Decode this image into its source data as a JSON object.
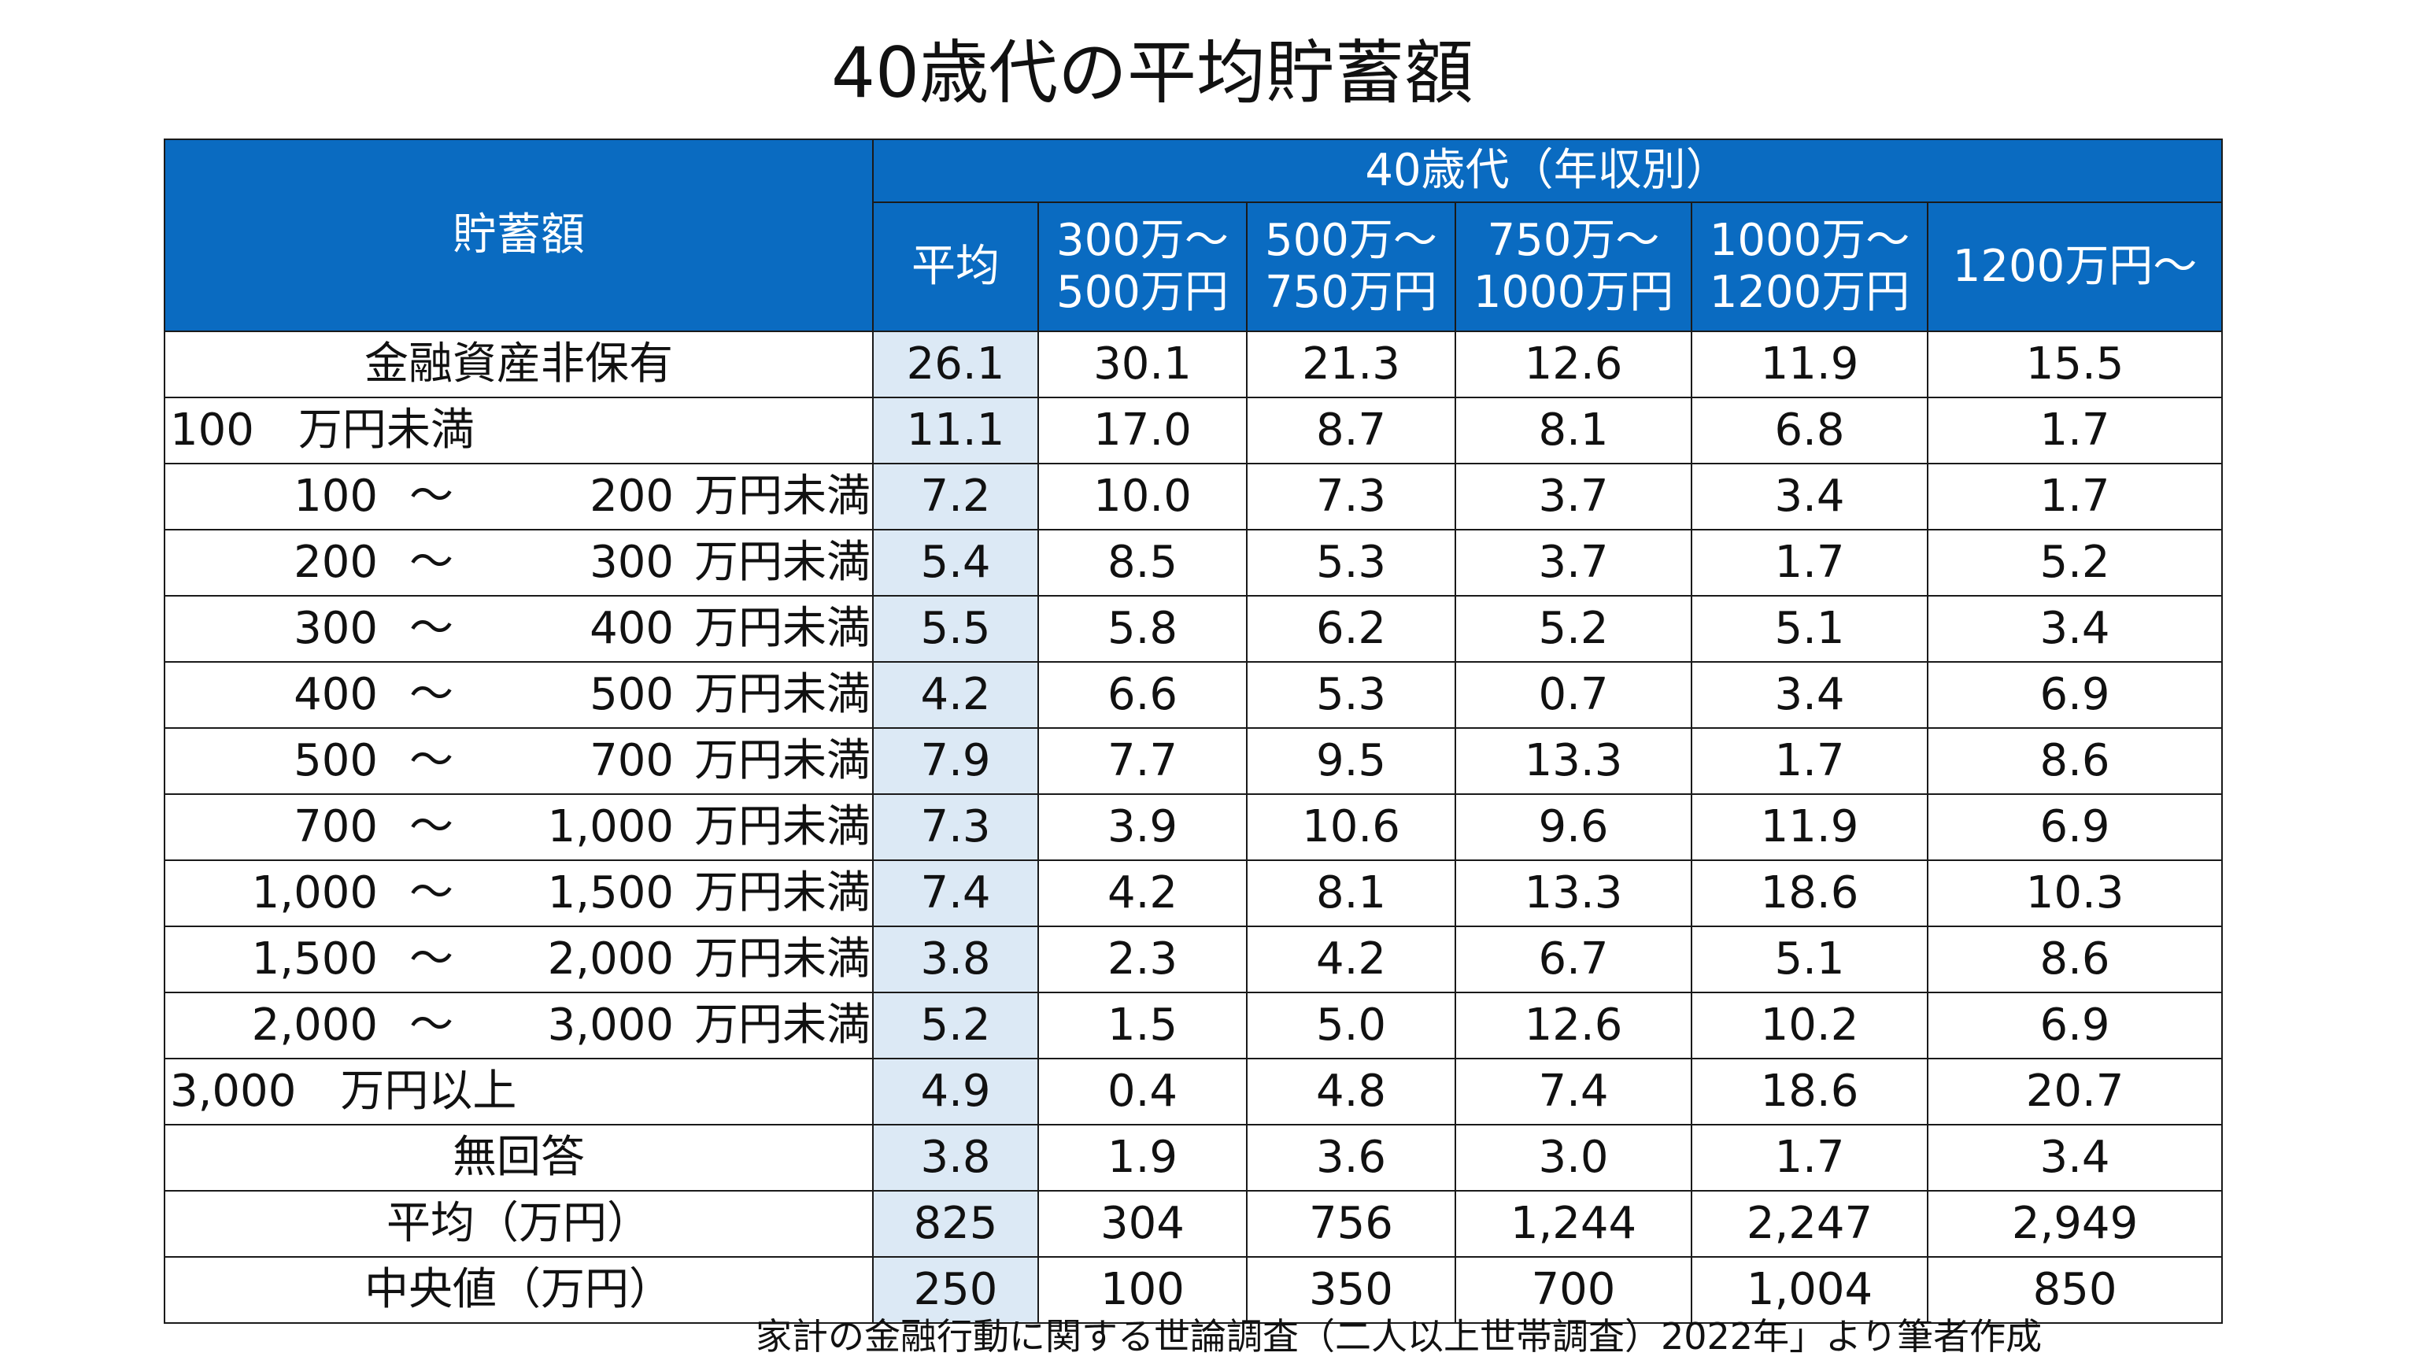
{
  "title": "40歳代の平均貯蓄額",
  "header": {
    "row_label": "貯蓄額",
    "group_label": "40歳代（年収別）",
    "columns": [
      {
        "line1": "平均",
        "line2": ""
      },
      {
        "line1": "300万～",
        "line2": "500万円"
      },
      {
        "line1": "500万～",
        "line2": "750万円"
      },
      {
        "line1": "750万～",
        "line2": "1000万円"
      },
      {
        "line1": "1000万～",
        "line2": "1200万円"
      },
      {
        "line1": "1200万円～",
        "line2": ""
      }
    ]
  },
  "rows": [
    {
      "kind": "center",
      "label": "金融資産非保有",
      "values": [
        "26.1",
        "30.1",
        "21.3",
        "12.6",
        "11.9",
        "15.5"
      ]
    },
    {
      "kind": "left",
      "label": "100　万円未満",
      "values": [
        "11.1",
        "17.0",
        "8.7",
        "8.1",
        "6.8",
        "1.7"
      ]
    },
    {
      "kind": "range",
      "lo": "100",
      "tilde": "～",
      "hi": "200",
      "unit": "万円未満",
      "values": [
        "7.2",
        "10.0",
        "7.3",
        "3.7",
        "3.4",
        "1.7"
      ]
    },
    {
      "kind": "range",
      "lo": "200",
      "tilde": "～",
      "hi": "300",
      "unit": "万円未満",
      "values": [
        "5.4",
        "8.5",
        "5.3",
        "3.7",
        "1.7",
        "5.2"
      ]
    },
    {
      "kind": "range",
      "lo": "300",
      "tilde": "～",
      "hi": "400",
      "unit": "万円未満",
      "values": [
        "5.5",
        "5.8",
        "6.2",
        "5.2",
        "5.1",
        "3.4"
      ]
    },
    {
      "kind": "range",
      "lo": "400",
      "tilde": "～",
      "hi": "500",
      "unit": "万円未満",
      "values": [
        "4.2",
        "6.6",
        "5.3",
        "0.7",
        "3.4",
        "6.9"
      ]
    },
    {
      "kind": "range",
      "lo": "500",
      "tilde": "～",
      "hi": "700",
      "unit": "万円未満",
      "values": [
        "7.9",
        "7.7",
        "9.5",
        "13.3",
        "1.7",
        "8.6"
      ]
    },
    {
      "kind": "range",
      "lo": "700",
      "tilde": "～",
      "hi": "1,000",
      "unit": "万円未満",
      "values": [
        "7.3",
        "3.9",
        "10.6",
        "9.6",
        "11.9",
        "6.9"
      ]
    },
    {
      "kind": "range",
      "lo": "1,000",
      "tilde": "～",
      "hi": "1,500",
      "unit": "万円未満",
      "values": [
        "7.4",
        "4.2",
        "8.1",
        "13.3",
        "18.6",
        "10.3"
      ]
    },
    {
      "kind": "range",
      "lo": "1,500",
      "tilde": "～",
      "hi": "2,000",
      "unit": "万円未満",
      "values": [
        "3.8",
        "2.3",
        "4.2",
        "6.7",
        "5.1",
        "8.6"
      ]
    },
    {
      "kind": "range",
      "lo": "2,000",
      "tilde": "～",
      "hi": "3,000",
      "unit": "万円未満",
      "values": [
        "5.2",
        "1.5",
        "5.0",
        "12.6",
        "10.2",
        "6.9"
      ]
    },
    {
      "kind": "left",
      "label": "3,000　万円以上",
      "values": [
        "4.9",
        "0.4",
        "4.8",
        "7.4",
        "18.6",
        "20.7"
      ]
    },
    {
      "kind": "center",
      "label": "無回答",
      "values": [
        "3.8",
        "1.9",
        "3.6",
        "3.0",
        "1.7",
        "3.4"
      ]
    },
    {
      "kind": "center",
      "label": "平均（万円）",
      "values": [
        "825",
        "304",
        "756",
        "1,244",
        "2,247",
        "2,949"
      ]
    },
    {
      "kind": "center",
      "label": "中央値（万円）",
      "values": [
        "250",
        "100",
        "350",
        "700",
        "1,004",
        "850"
      ]
    }
  ],
  "source": "家計の金融行動に関する世論調査（二人以上世帯調査）2022年」より筆者作成",
  "colors": {
    "header_bg": "#0a6bc1",
    "header_text": "#ffffff",
    "average_column_bg": "#dce9f5",
    "border": "#1a1a1a"
  }
}
